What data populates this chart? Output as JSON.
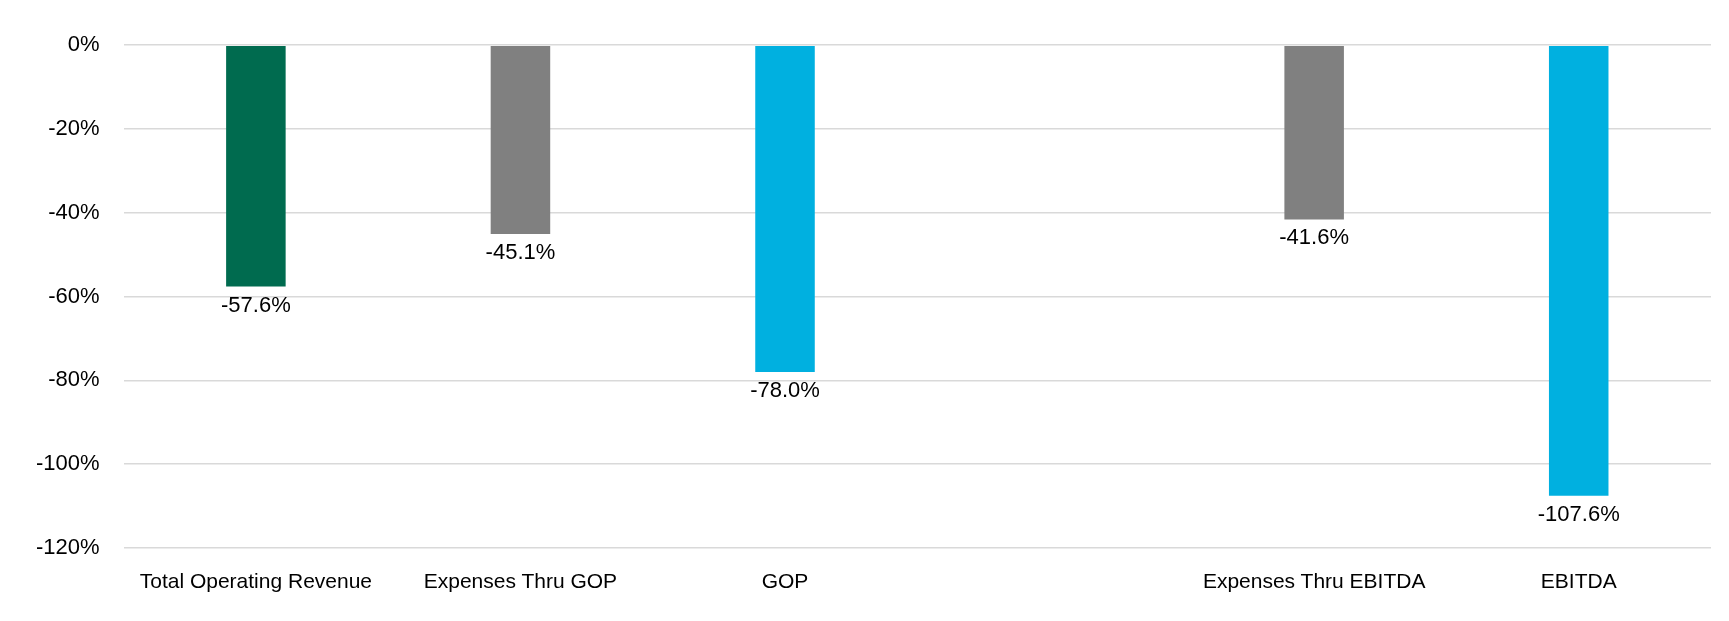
{
  "chart_data": {
    "type": "bar",
    "categories": [
      "Total Operating Revenue",
      "Expenses Thru GOP",
      "GOP",
      null,
      "Expenses Thru EBITDA",
      "EBITDA"
    ],
    "values": [
      -57.6,
      -45.1,
      -78.0,
      null,
      -41.6,
      -107.6
    ],
    "colors": [
      "#006b4f",
      "#808080",
      "#00b0e0",
      "#808080",
      "#808080",
      "#00b0e0"
    ],
    "value_labels": [
      "-57.6%",
      "-45.1%",
      "-78.0%",
      null,
      "-41.6%",
      "-107.6%"
    ],
    "ylim": [
      -120,
      0
    ],
    "yticks": [
      {
        "value": 0,
        "label": "0%"
      },
      {
        "value": -20,
        "label": "-20%"
      },
      {
        "value": -40,
        "label": "-40%"
      },
      {
        "value": -60,
        "label": "-60%"
      },
      {
        "value": -80,
        "label": "-80%"
      },
      {
        "value": -100,
        "label": "-100%"
      },
      {
        "value": -120,
        "label": "-120%"
      }
    ],
    "grid": "y",
    "legend": false
  }
}
